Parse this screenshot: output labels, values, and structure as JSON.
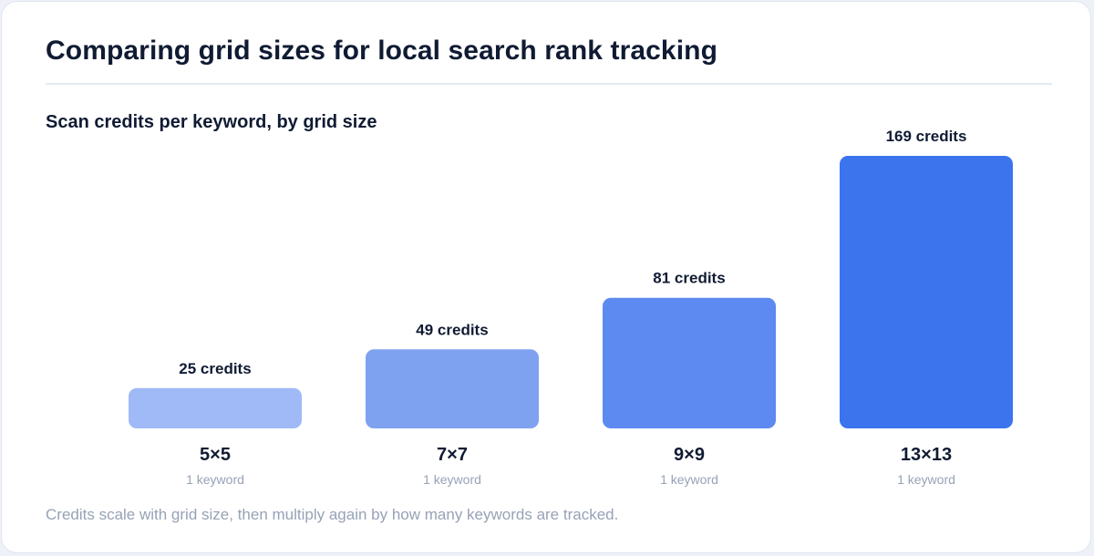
{
  "header": {
    "title": "Comparing grid sizes for local search rank tracking"
  },
  "footer": {
    "note": "Credits scale with grid size, then multiply again by how many keywords are tracked."
  },
  "chart_data": {
    "type": "bar",
    "title": "Scan credits per keyword, by grid size",
    "categories": [
      "5×5",
      "7×7",
      "9×9",
      "13×13"
    ],
    "sublabels": [
      "1 keyword",
      "1 keyword",
      "1 keyword",
      "1 keyword"
    ],
    "values": [
      25,
      49,
      81,
      169
    ],
    "value_labels": [
      "25 credits",
      "49 credits",
      "81 credits",
      "169 credits"
    ],
    "colors": [
      "#a0baf7",
      "#7fa2f0",
      "#5d8af0",
      "#3c74ee"
    ],
    "grid": false,
    "legend": "none"
  }
}
